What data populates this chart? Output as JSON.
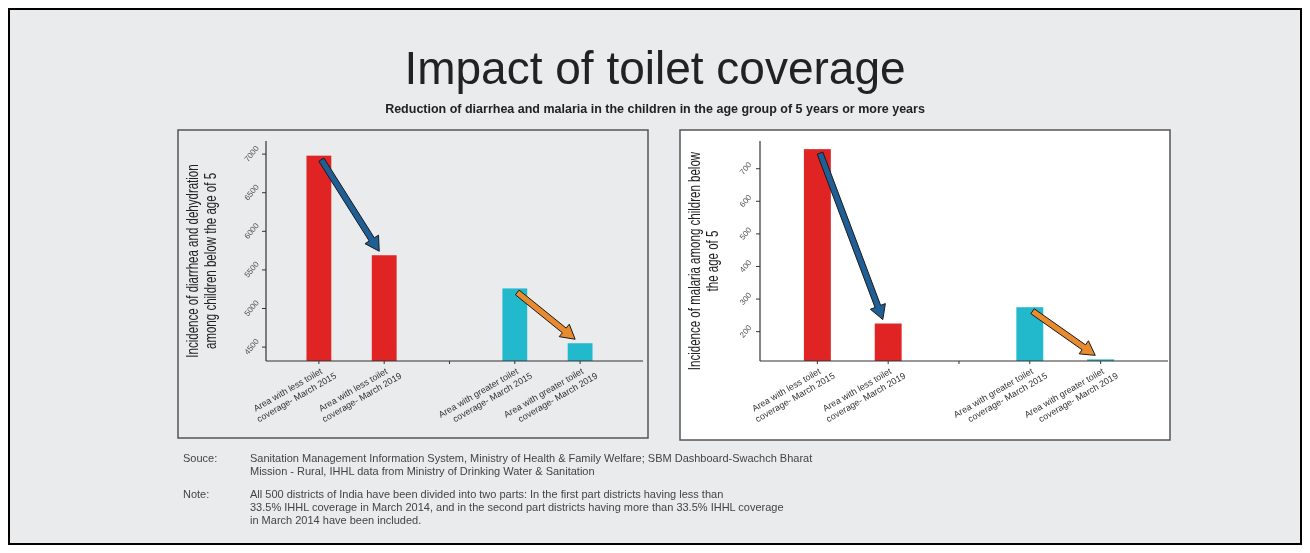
{
  "chart_data": [
    {
      "type": "bar",
      "title": "Impact of toilet coverage",
      "subtitle": "Reduction of diarrhea and malaria in the children in the age group of 5 years or more years",
      "ylabel": "Incidence of diarrhea and dehydration among children below the age of 5",
      "categories": [
        "Area with less toilet coverage- March 2015",
        "Area with less toilet coverage- March 2019",
        null,
        "Area with greater toilet coverage- March 2015",
        "Area with greater toilet coverage- March 2019"
      ],
      "values": [
        6980,
        5690,
        null,
        5260,
        4550
      ],
      "colors": [
        "#e02424",
        "#e02424",
        null,
        "#22b9cc",
        "#22b9cc"
      ],
      "ylim": [
        4320,
        7170
      ],
      "yticks": [
        4500,
        5000,
        5500,
        6000,
        6500,
        7000
      ],
      "grid": false,
      "annotations": [
        "Souce: Sanitation Management Information System, Ministry of Health & Family Welfare; SBM Dashboard-Swachch Bharat Mission - Rural, IHHL data from Ministry of Drinking Water & Sanitation",
        "Note: All 500 districts of India have been divided into two parts: In the first part districts having less than 33.5%  IHHL coverage in March 2014, and in the second part districts having more than 33.5%  IHHL coverage in March 2014 have been included."
      ]
    },
    {
      "type": "bar",
      "ylabel": "Incidence of malaria among children below the age of 5",
      "categories": [
        "Area with less toilet coverage- March 2015",
        "Area with less toilet coverage- March 2019",
        null,
        "Area with greater toilet coverage- March 2015",
        "Area with greater toilet coverage- March 2019"
      ],
      "values": [
        760,
        225,
        null,
        275,
        115
      ],
      "colors": [
        "#e02424",
        "#e02424",
        null,
        "#22b9cc",
        "#22b9cc"
      ],
      "ylim": [
        110,
        785
      ],
      "yticks": [
        200,
        300,
        400,
        500,
        600,
        700
      ],
      "grid": false
    }
  ]
}
